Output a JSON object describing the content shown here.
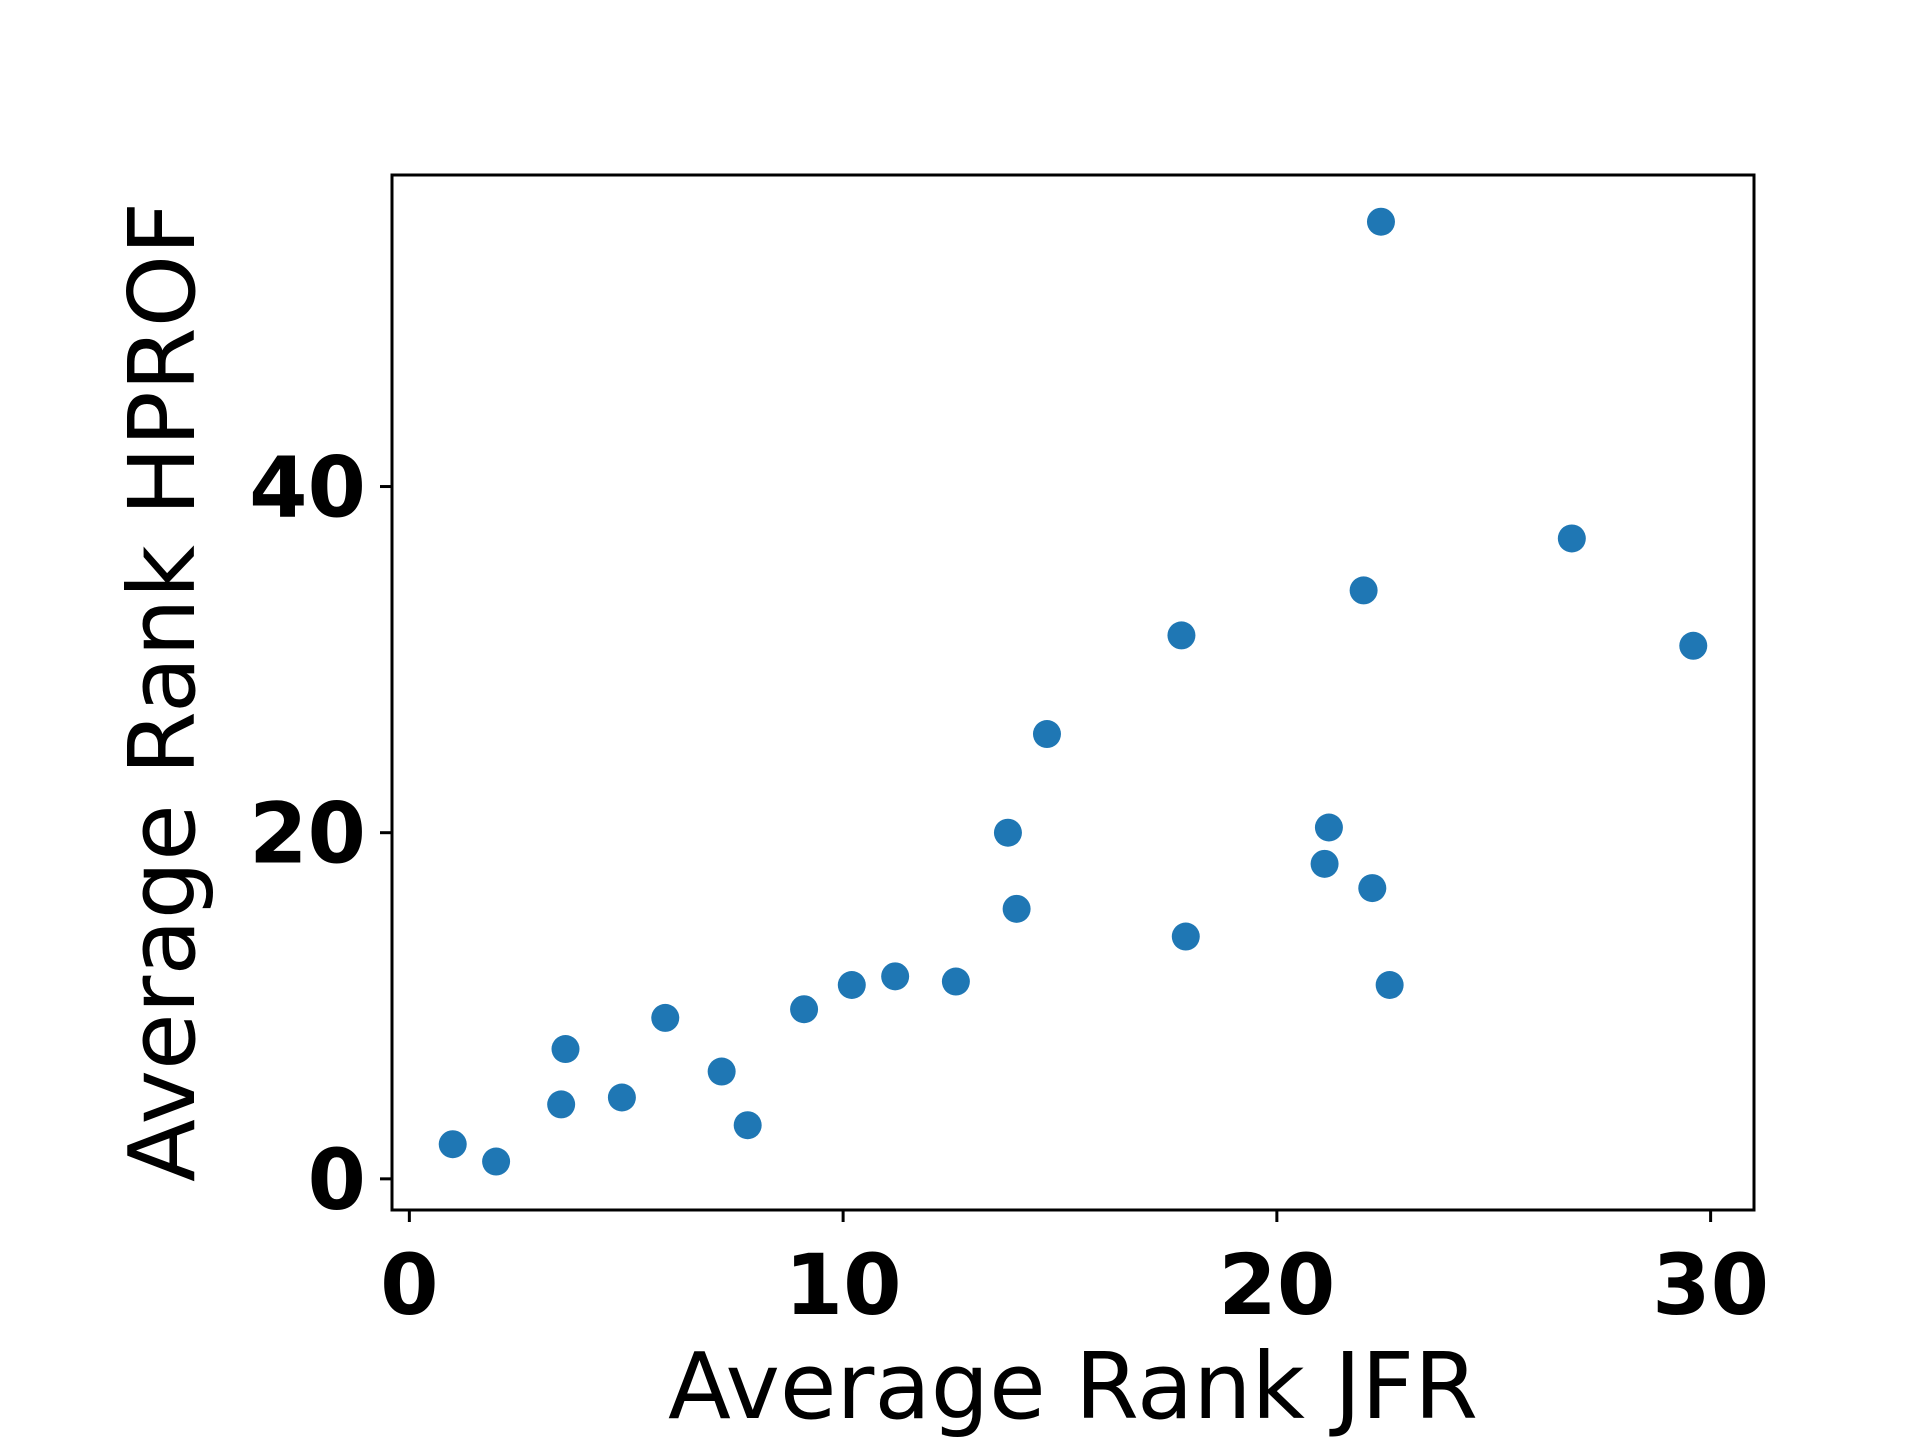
{
  "chart_data": {
    "type": "scatter",
    "xlabel": "Average Rank JFR",
    "ylabel": "Average Rank HPROF",
    "xlim": [
      -0.4,
      31
    ],
    "ylim": [
      -1.8,
      58
    ],
    "x_ticks": [
      0,
      10,
      20,
      30
    ],
    "y_ticks": [
      0,
      20,
      40
    ],
    "x_tick_labels": [
      "0",
      "10",
      "20",
      "30"
    ],
    "y_tick_labels": [
      "0",
      "20",
      "40"
    ],
    "grid": false,
    "marker_color": "#1f77b4",
    "series": [
      {
        "points": [
          {
            "x": 1.0,
            "y": 2.0
          },
          {
            "x": 2.0,
            "y": 1.0
          },
          {
            "x": 3.5,
            "y": 4.3
          },
          {
            "x": 3.6,
            "y": 7.5
          },
          {
            "x": 4.9,
            "y": 4.7
          },
          {
            "x": 5.9,
            "y": 9.3
          },
          {
            "x": 7.2,
            "y": 6.2
          },
          {
            "x": 7.8,
            "y": 3.1
          },
          {
            "x": 9.1,
            "y": 9.8
          },
          {
            "x": 10.2,
            "y": 11.2
          },
          {
            "x": 11.2,
            "y": 11.7
          },
          {
            "x": 12.6,
            "y": 11.4
          },
          {
            "x": 13.8,
            "y": 20.0
          },
          {
            "x": 14.0,
            "y": 15.6
          },
          {
            "x": 14.7,
            "y": 25.7
          },
          {
            "x": 17.8,
            "y": 31.4
          },
          {
            "x": 17.9,
            "y": 14.0
          },
          {
            "x": 21.1,
            "y": 18.2
          },
          {
            "x": 21.2,
            "y": 20.3
          },
          {
            "x": 22.0,
            "y": 34.0
          },
          {
            "x": 22.2,
            "y": 16.8
          },
          {
            "x": 22.4,
            "y": 55.3
          },
          {
            "x": 22.6,
            "y": 11.2
          },
          {
            "x": 26.8,
            "y": 37.0
          },
          {
            "x": 29.6,
            "y": 30.8
          }
        ]
      }
    ]
  }
}
